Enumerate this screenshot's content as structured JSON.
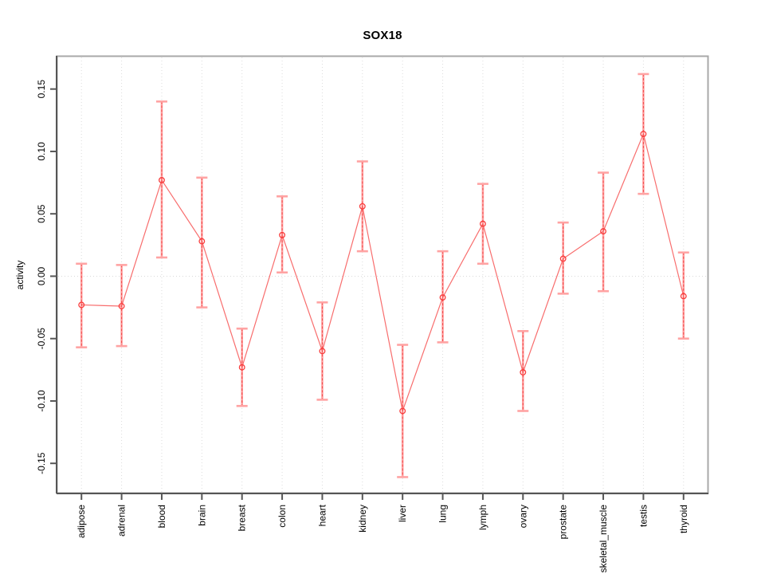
{
  "title": "SOX18",
  "chart_data": {
    "type": "line",
    "title": "SOX18",
    "xlabel": "",
    "ylabel": "activity",
    "categories": [
      "adipose",
      "adrenal",
      "blood",
      "brain",
      "breast",
      "colon",
      "heart",
      "kidney",
      "liver",
      "lung",
      "lymph",
      "ovary",
      "prostate",
      "skeletal_muscle",
      "testis",
      "thyroid"
    ],
    "series": [
      {
        "name": "activity",
        "values": [
          -0.023,
          -0.024,
          0.077,
          0.028,
          -0.073,
          0.033,
          -0.06,
          0.056,
          -0.108,
          -0.017,
          0.042,
          -0.077,
          0.014,
          0.036,
          0.114,
          -0.016
        ],
        "upper": [
          0.01,
          0.009,
          0.14,
          0.079,
          -0.042,
          0.064,
          -0.021,
          0.092,
          -0.055,
          0.02,
          0.074,
          -0.044,
          0.043,
          0.083,
          0.162,
          0.019
        ],
        "lower": [
          -0.057,
          -0.056,
          0.015,
          -0.025,
          -0.104,
          0.003,
          -0.099,
          0.02,
          -0.161,
          -0.053,
          0.01,
          -0.108,
          -0.014,
          -0.012,
          0.066,
          -0.05
        ]
      }
    ],
    "ylim": [
      -0.1735,
      0.176
    ],
    "yticks": [
      -0.15,
      -0.1,
      -0.05,
      0.0,
      0.05,
      0.1,
      0.15
    ],
    "ytick_labels": [
      "-0.15",
      "-0.10",
      "-0.05",
      "0.00",
      "0.05",
      "0.10",
      "0.15"
    ],
    "grid": "vertical-dotted",
    "zero_line": true,
    "legend": "none",
    "colors": {
      "point": "#f93b3b",
      "line": "#f75d5d",
      "error_bar": "#ffa3a3",
      "error_dash": "#ef3b3b",
      "box": "#a8a8a8",
      "axis": "#565656",
      "grid": "#dcdcdc",
      "zero_line": "#d9d9d9",
      "text": "#000000"
    }
  }
}
